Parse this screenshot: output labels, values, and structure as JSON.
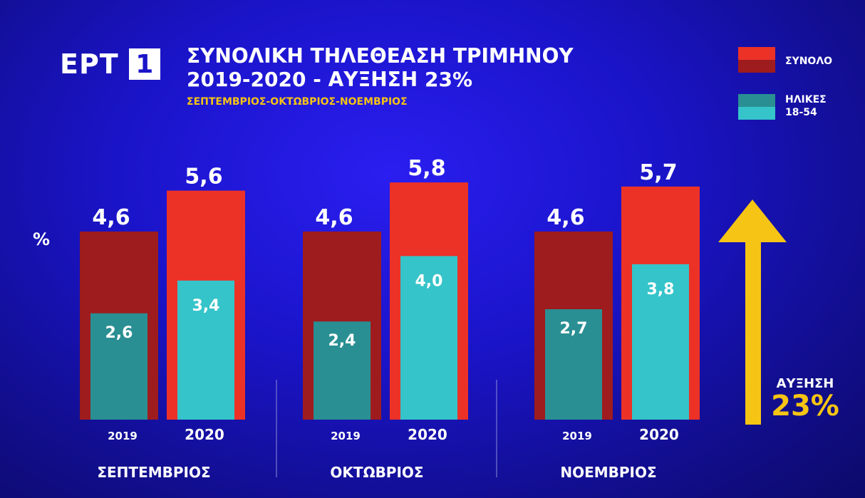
{
  "logo": {
    "text": "ΕΡΤ",
    "number": "1"
  },
  "title_line1": "ΣΥΝΟΛΙΚΗ ΤΗΛΕΘΕΑΣΗ ΤΡΙΜΗΝΟΥ",
  "title_line2": "2019-2020 - ΑΥΞΗΣΗ 23%",
  "subtitle": "ΣΕΠΤΕΜΒΡΙΟΣ-ΟΚΤΩΒΡΙΟΣ-ΝΟΕΜΒΡΙΟΣ",
  "legend": {
    "total_label": "ΣΥΝΟΛΟ",
    "ages_label_line1": "ΗΛΙΚΕΣ",
    "ages_label_line2": "18-54"
  },
  "y_unit": "%",
  "increase": {
    "label": "ΑΥΞΗΣΗ",
    "value": "23%"
  },
  "colors": {
    "total_2019": "#9e1c1e",
    "total_2020": "#ec3227",
    "ages_2019": "#2a8f93",
    "ages_2020": "#35c4c9",
    "accent": "#f6c414"
  },
  "chart_data": {
    "type": "bar",
    "categories": [
      "ΣΕΠΤΕΜΒΡΙΟΣ",
      "ΟΚΤΩΒΡΙΟΣ",
      "ΝΟΕΜΒΡΙΟΣ"
    ],
    "years": [
      "2019",
      "2020"
    ],
    "series": [
      {
        "name": "ΣΥΝΟΛΟ",
        "values_2019": [
          4.6,
          4.6,
          4.6
        ],
        "values_2020": [
          5.6,
          5.8,
          5.7
        ],
        "labels_2019": [
          "4,6",
          "4,6",
          "4,6"
        ],
        "labels_2020": [
          "5,6",
          "5,8",
          "5,7"
        ]
      },
      {
        "name": "ΗΛΙΚΕΣ 18-54",
        "values_2019": [
          2.6,
          2.4,
          2.7
        ],
        "values_2020": [
          3.4,
          4.0,
          3.8
        ],
        "labels_2019": [
          "2,6",
          "2,4",
          "2,7"
        ],
        "labels_2020": [
          "3,4",
          "4,0",
          "3,8"
        ]
      }
    ],
    "ylim": [
      0,
      7
    ],
    "grid": false
  }
}
